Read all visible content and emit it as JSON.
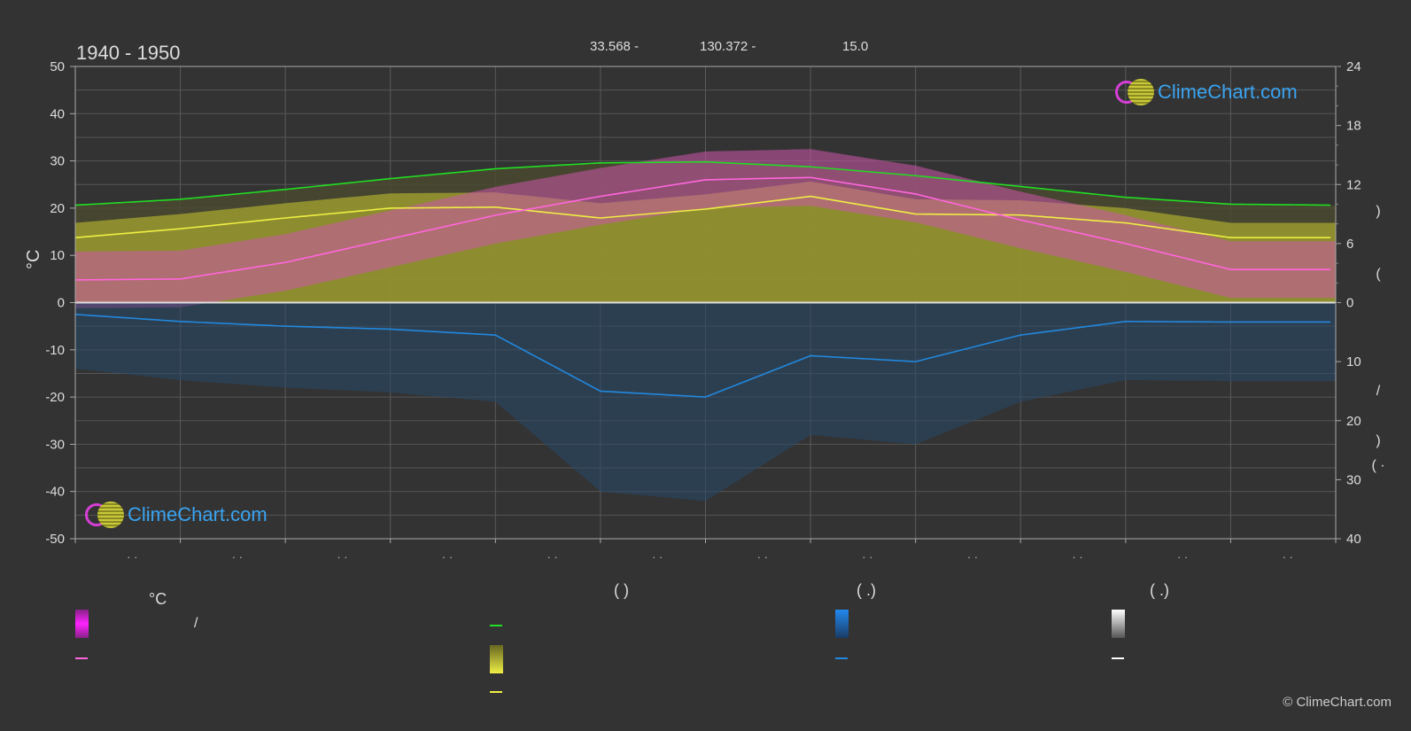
{
  "header": {
    "period": "1940 - 1950",
    "lat": "33.568 -",
    "lon": "130.372 -",
    "elev": "15.0"
  },
  "axes": {
    "left_unit": "°C",
    "left_ticks": [
      "50",
      "40",
      "30",
      "20",
      "10",
      "0",
      "-10",
      "-20",
      "-30",
      "-40",
      "-50"
    ],
    "right_top_ticks": [
      "24",
      "18",
      "12",
      "6",
      "0"
    ],
    "right_bottom_ticks": [
      "10",
      "20",
      "30",
      "40"
    ],
    "right_labels": [
      ")",
      "(",
      "/",
      ")",
      "(  ·"
    ],
    "month_labels": [
      "· ·",
      "· ·",
      "· ·",
      "· ·",
      "· ·",
      "· ·",
      "· ·",
      "· ·",
      "· ·",
      "· ·",
      "· ·",
      "· ·"
    ]
  },
  "legend": {
    "col1_head": "°C",
    "col1_item1": "/",
    "col2_head": "(          )",
    "col3_head": "(   .)",
    "col4_head": "(   .)"
  },
  "logo_text": "ClimeChart.com",
  "copyright": "© ClimeChart.com",
  "colors": {
    "daylight": "#22dd22",
    "sunshine": "#eeee44",
    "temp_mean": "#ff66dd",
    "temp_band": "#dd22dd",
    "precip": "#2288dd",
    "snow": "#ffffff",
    "sun_fill": "#9a9a30"
  },
  "chart_data": {
    "type": "area",
    "title": "1940 - 1950",
    "ylim_left": [
      -50,
      50
    ],
    "ylim_right_top": [
      0,
      24
    ],
    "ylim_right_bottom": [
      40,
      0
    ],
    "x_months": [
      0,
      1,
      2,
      3,
      4,
      5,
      6,
      7,
      8,
      9,
      10,
      11,
      12
    ],
    "series": [
      {
        "name": "daylight",
        "axis": "right_top",
        "x": [
          0,
          1,
          2,
          3,
          4,
          5,
          6,
          7,
          8,
          9,
          10,
          11,
          12
        ],
        "values": [
          9.9,
          10.5,
          11.5,
          12.6,
          13.6,
          14.2,
          14.3,
          13.8,
          12.9,
          11.8,
          10.7,
          10.0,
          9.9
        ]
      },
      {
        "name": "sunshine",
        "axis": "right_top",
        "x": [
          0,
          1,
          2,
          3,
          4,
          5,
          6,
          7,
          8,
          9,
          10,
          11,
          12
        ],
        "values": [
          6.6,
          7.5,
          8.6,
          9.6,
          9.7,
          8.6,
          9.5,
          10.8,
          9.0,
          8.9,
          8.1,
          6.6,
          6.6
        ]
      },
      {
        "name": "temp_mean",
        "axis": "left",
        "x": [
          0,
          1,
          2,
          3,
          4,
          5,
          6,
          7,
          8,
          9,
          10,
          11,
          12
        ],
        "values": [
          4.8,
          5.0,
          8.5,
          13.5,
          18.5,
          22.5,
          26.0,
          26.5,
          23.0,
          17.5,
          12.5,
          7.0,
          7.0
        ]
      },
      {
        "name": "precip_mean",
        "axis": "right_bottom",
        "x": [
          0,
          1,
          2,
          3,
          4,
          5,
          6,
          7,
          8,
          9,
          10,
          11,
          12
        ],
        "values": [
          2.0,
          3.2,
          4.0,
          4.5,
          5.5,
          15.0,
          16.0,
          9.0,
          10.0,
          5.5,
          3.2,
          3.3,
          3.3
        ]
      }
    ]
  }
}
